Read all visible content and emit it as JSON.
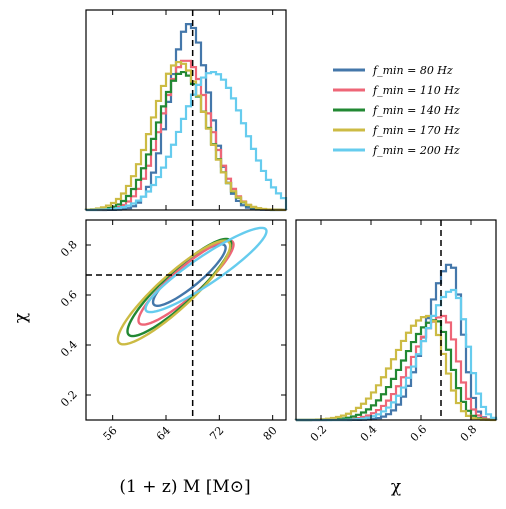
{
  "colors": {
    "f80": "#4477aa",
    "f110": "#ee6677",
    "f140": "#228833",
    "f170": "#ccbb44",
    "f200": "#66ccee",
    "truth": "#000000"
  },
  "chart_data": {
    "type": "corner",
    "parameters": [
      {
        "key": "mass",
        "label": "(1 + z) M [M⊙]",
        "range": [
          52,
          82
        ],
        "ticks": [
          56,
          64,
          72,
          80
        ],
        "tick_labels": [
          "56",
          "64",
          "72",
          "80"
        ],
        "truth": 68
      },
      {
        "key": "chi",
        "label": "χ",
        "range": [
          0.1,
          0.9
        ],
        "ticks": [
          0.2,
          0.4,
          0.6,
          0.8
        ],
        "tick_labels": [
          "0.2",
          "0.4",
          "0.6",
          "0.8"
        ],
        "truth": 0.68
      }
    ],
    "legend": [
      {
        "key": "f80",
        "label": "f_min = 80 Hz"
      },
      {
        "key": "f110",
        "label": "f_min = 110 Hz"
      },
      {
        "key": "f140",
        "label": "f_min = 140 Hz"
      },
      {
        "key": "f170",
        "label": "f_min = 170 Hz"
      },
      {
        "key": "f200",
        "label": "f_min = 200 Hz"
      }
    ],
    "legend_position": "top-right",
    "series": [
      {
        "key": "f80",
        "mass_mean": 67.5,
        "mass_sd": 3.0,
        "mass_peak": 0.93,
        "chi_mean": 0.72,
        "chi_sd": 0.065,
        "chi_peak": 0.78,
        "corr": 0.88,
        "contour": {
          "cx": 67.5,
          "cy": 0.68,
          "sx": 4.2,
          "sy": 0.095
        }
      },
      {
        "key": "f110",
        "chi_mean": 0.69,
        "mass_mean": 67.0,
        "mass_sd": 3.6,
        "mass_peak": 0.75,
        "chi_sd": 0.08,
        "chi_peak": 0.52,
        "corr": 0.9,
        "contour": {
          "cx": 67.0,
          "cy": 0.65,
          "sx": 5.5,
          "sy": 0.13
        }
      },
      {
        "key": "f140",
        "mass_mean": 66.5,
        "mass_sd": 3.8,
        "mass_peak": 0.69,
        "chi_mean": 0.66,
        "chi_sd": 0.085,
        "chi_peak": 0.5,
        "corr": 0.9,
        "contour": {
          "cx": 66.0,
          "cy": 0.63,
          "sx": 6.0,
          "sy": 0.15
        }
      },
      {
        "key": "f170",
        "mass_mean": 66.0,
        "mass_sd": 4.0,
        "mass_peak": 0.74,
        "chi_mean": 0.63,
        "chi_sd": 0.09,
        "chi_peak": 0.52,
        "corr": 0.9,
        "contour": {
          "cx": 65.2,
          "cy": 0.61,
          "sx": 6.5,
          "sy": 0.16
        }
      },
      {
        "key": "f200",
        "mass_mean": 71.0,
        "mass_sd": 4.8,
        "mass_peak": 0.69,
        "chi_mean": 0.73,
        "chi_sd": 0.08,
        "chi_peak": 0.65,
        "corr": 0.92,
        "contour": {
          "cx": 70.0,
          "cy": 0.7,
          "sx": 7.0,
          "sy": 0.13
        }
      }
    ]
  }
}
